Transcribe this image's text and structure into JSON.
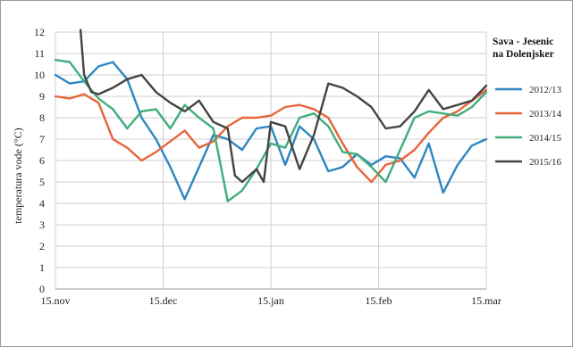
{
  "chart_data": {
    "type": "line",
    "title_lines": [
      "Sava - Jesenic",
      "na Dolenjsker"
    ],
    "ylabel": "temperatura vode (°C)",
    "xlabel": "",
    "ylim": [
      0,
      12
    ],
    "y_ticks": [
      "0",
      "1",
      "2",
      "3",
      "4",
      "5",
      "6",
      "7",
      "8",
      "9",
      "10",
      "11",
      "12"
    ],
    "x_ticks": [
      "15.nov",
      "15.dec",
      "15.jan",
      "15.feb",
      "15.mar"
    ],
    "grid": true,
    "legend_position": "right",
    "colors": {
      "2012/13": "#2e86c1",
      "2013/14": "#e8643a",
      "2014/15": "#3fae7a",
      "2015/16": "#444444"
    },
    "series": [
      {
        "name": "2012/13",
        "x": [
          0,
          4,
          8,
          12,
          16,
          20,
          24,
          28,
          32,
          36,
          40,
          44,
          48,
          52,
          56,
          60,
          64,
          68,
          72,
          76,
          80,
          84,
          88,
          92,
          96,
          100,
          104,
          108,
          112,
          116,
          120
        ],
        "values": [
          10.0,
          9.6,
          9.7,
          10.4,
          10.6,
          9.8,
          8.0,
          7.0,
          5.7,
          4.2,
          5.7,
          7.2,
          7.0,
          6.5,
          7.5,
          7.6,
          5.8,
          7.6,
          7.0,
          5.5,
          5.7,
          6.3,
          5.8,
          6.2,
          6.1,
          5.2,
          6.8,
          4.5,
          5.8,
          6.7,
          7.0
        ]
      },
      {
        "name": "2013/14",
        "x": [
          0,
          4,
          8,
          12,
          16,
          20,
          24,
          28,
          32,
          36,
          40,
          44,
          48,
          52,
          56,
          60,
          64,
          68,
          72,
          76,
          80,
          84,
          88,
          92,
          96,
          100,
          104,
          108,
          112,
          116,
          120
        ],
        "values": [
          9.0,
          8.9,
          9.1,
          8.7,
          7.0,
          6.6,
          6.0,
          6.4,
          6.9,
          7.4,
          6.6,
          6.9,
          7.6,
          8.0,
          8.0,
          8.1,
          8.5,
          8.6,
          8.4,
          8.0,
          6.8,
          5.7,
          5.0,
          5.8,
          6.0,
          6.5,
          7.3,
          8.0,
          8.3,
          8.8,
          9.3
        ]
      },
      {
        "name": "2014/15",
        "x": [
          0,
          4,
          8,
          12,
          16,
          20,
          24,
          28,
          32,
          36,
          40,
          44,
          48,
          52,
          56,
          60,
          64,
          68,
          72,
          76,
          80,
          84,
          88,
          92,
          96,
          100,
          104,
          108,
          112,
          116,
          120
        ],
        "values": [
          10.7,
          10.6,
          9.7,
          8.9,
          8.4,
          7.5,
          8.3,
          8.4,
          7.5,
          8.6,
          8.0,
          7.5,
          4.1,
          4.6,
          5.6,
          6.8,
          6.6,
          8.0,
          8.2,
          7.6,
          6.4,
          6.3,
          5.7,
          5.0,
          6.5,
          8.0,
          8.3,
          8.2,
          8.1,
          8.5,
          9.2
        ]
      },
      {
        "name": "2015/16",
        "x": [
          7,
          8,
          10,
          12,
          16,
          20,
          24,
          28,
          32,
          36,
          40,
          44,
          48,
          50,
          52,
          56,
          58,
          60,
          64,
          68,
          72,
          76,
          80,
          84,
          88,
          92,
          96,
          100,
          104,
          108,
          112,
          116,
          120
        ],
        "values": [
          12.1,
          10.0,
          9.2,
          9.1,
          9.4,
          9.8,
          10.0,
          9.2,
          8.7,
          8.3,
          8.8,
          7.8,
          7.5,
          5.3,
          5.0,
          5.6,
          5.0,
          7.8,
          7.6,
          5.6,
          7.2,
          9.6,
          9.4,
          9.0,
          8.5,
          7.5,
          7.6,
          8.3,
          9.3,
          8.4,
          8.6,
          8.8,
          9.5
        ]
      }
    ]
  }
}
